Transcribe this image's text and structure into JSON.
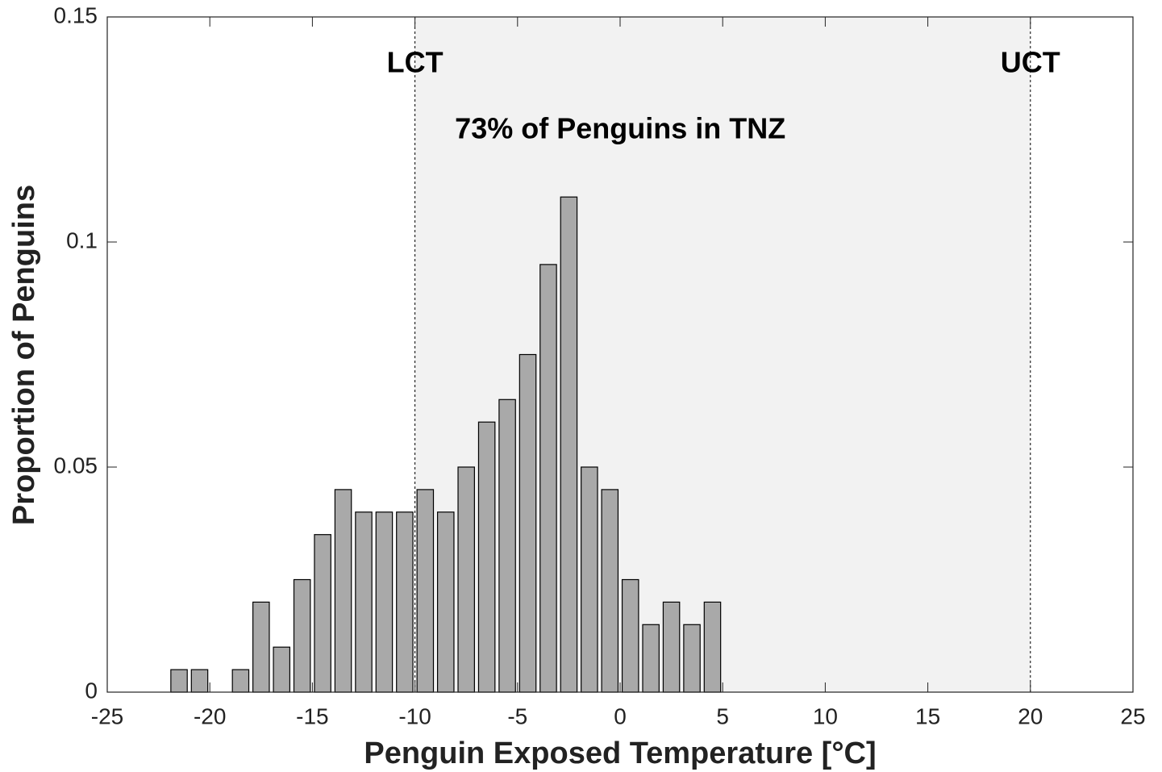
{
  "chart_data": {
    "type": "bar",
    "xlabel": "Penguin Exposed Temperature [°C]",
    "ylabel": "Proportion of Penguins",
    "x": [
      -24.5,
      -23.5,
      -22.5,
      -21.5,
      -20.5,
      -19.5,
      -18.5,
      -17.5,
      -16.5,
      -15.5,
      -14.5,
      -13.5,
      -12.5,
      -11.5,
      -10.5,
      -9.5,
      -8.5,
      -7.5,
      -6.5,
      -5.5,
      -4.5,
      -3.5,
      -2.5,
      -1.5,
      -0.5,
      0.5,
      1.5,
      2.5,
      3.5,
      4.5,
      5.5,
      6.5,
      7.5,
      8.5,
      9.5,
      10.5,
      11.5,
      12.5,
      13.5,
      14.5,
      15.5,
      16.5,
      17.5,
      18.5,
      19.5,
      20.5,
      21.5,
      22.5,
      23.5,
      24.5
    ],
    "values": [
      0,
      0,
      0,
      0.005,
      0.005,
      0,
      0.005,
      0.02,
      0.01,
      0.025,
      0.035,
      0.045,
      0.04,
      0.04,
      0.04,
      0.045,
      0.04,
      0.05,
      0.06,
      0.065,
      0.075,
      0.095,
      0.11,
      0.05,
      0.045,
      0.025,
      0.015,
      0.02,
      0.015,
      0.02,
      0,
      0,
      0,
      0,
      0,
      0,
      0,
      0,
      0,
      0,
      0,
      0,
      0,
      0,
      0,
      0,
      0,
      0,
      0,
      0
    ],
    "bar_width": 0.8,
    "color": "#a9a9a9",
    "xlim": [
      -25,
      25
    ],
    "xticks": [
      -25,
      -20,
      -15,
      -10,
      -5,
      0,
      5,
      10,
      15,
      20,
      25
    ],
    "ylim": [
      0,
      0.15
    ],
    "yticks": [
      0,
      0.05,
      0.1,
      0.15
    ],
    "vlines": [
      {
        "x": -10,
        "label": "LCT"
      },
      {
        "x": 20,
        "label": "UCT"
      }
    ],
    "shade_color": "#f2f2f2",
    "annotation": "73% of Penguins in TNZ"
  }
}
